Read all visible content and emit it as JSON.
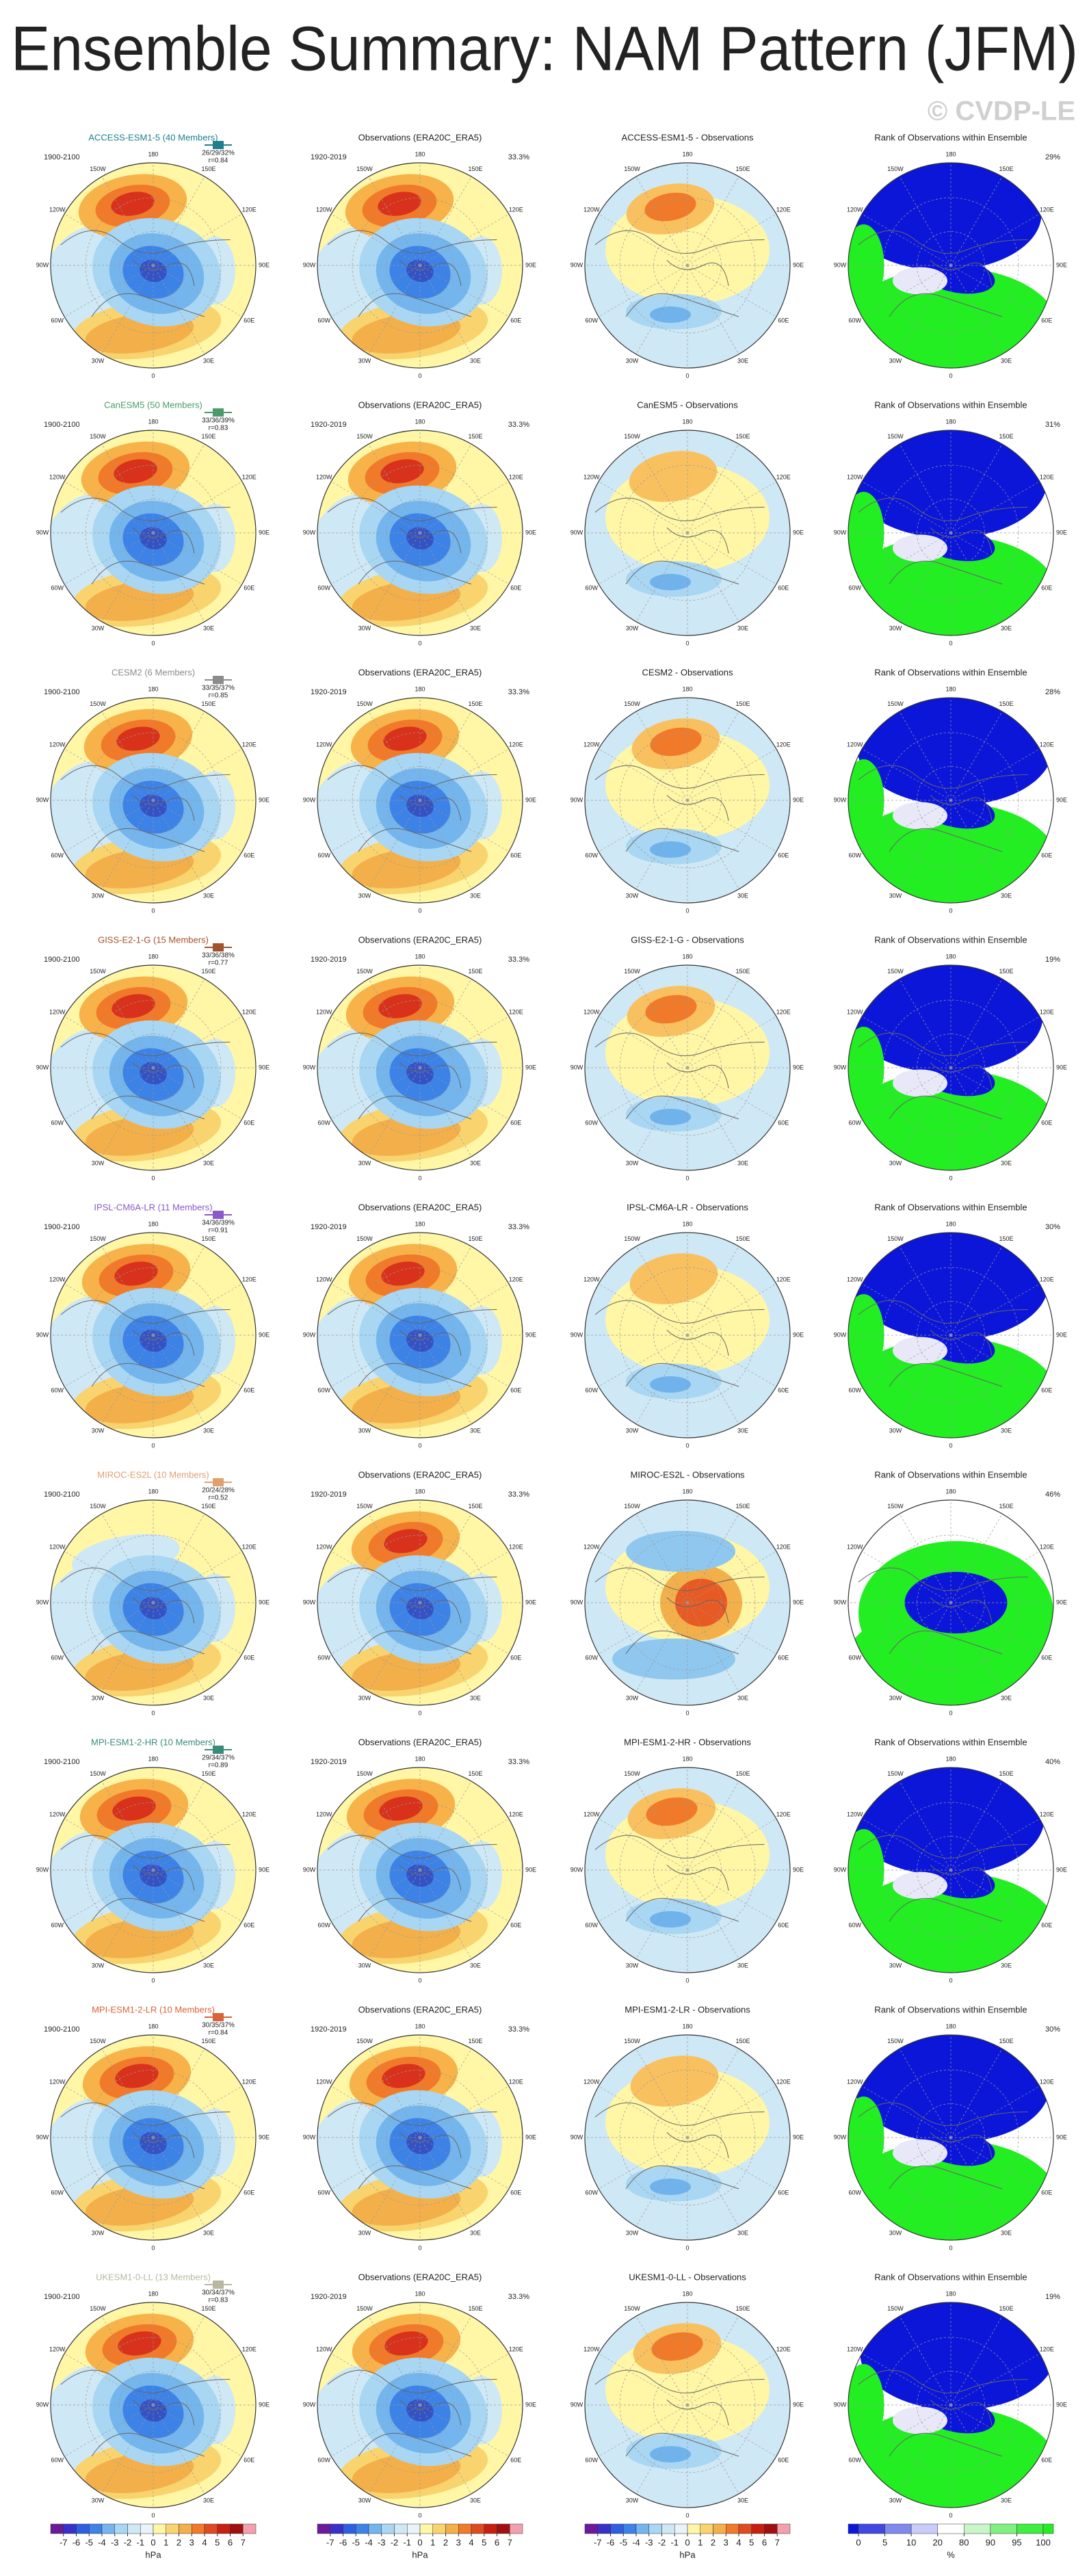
{
  "title": "Ensemble Summary: NAM Pattern (JFM)",
  "watermark": "© CVDP-LE",
  "rows": [
    {
      "model": "ACCESS-ESM1-5 (40 Members)",
      "model_color": "#1f7f8c",
      "model_years": "1900-2100",
      "model_stats": "26/29/32%",
      "model_r": "r=0.84",
      "obs_title": "Observations (ERA20C_ERA5)",
      "obs_years": "1920-2019",
      "obs_stat": "33.3%",
      "diff_title": "ACCESS-ESM1-5 - Observations",
      "rank_title": "Rank of Observations within Ensemble",
      "rank_stat": "29%"
    },
    {
      "model": "CanESM5 (50 Members)",
      "model_color": "#4a9a6a",
      "model_years": "1900-2100",
      "model_stats": "33/36/39%",
      "model_r": "r=0.83",
      "obs_title": "Observations (ERA20C_ERA5)",
      "obs_years": "1920-2019",
      "obs_stat": "33.3%",
      "diff_title": "CanESM5 - Observations",
      "rank_title": "Rank of Observations within Ensemble",
      "rank_stat": "31%"
    },
    {
      "model": "CESM2 (6 Members)",
      "model_color": "#8c8c8c",
      "model_years": "1900-2100",
      "model_stats": "33/35/37%",
      "model_r": "r=0.85",
      "obs_title": "Observations (ERA20C_ERA5)",
      "obs_years": "1920-2019",
      "obs_stat": "33.3%",
      "diff_title": "CESM2 - Observations",
      "rank_title": "Rank of Observations within Ensemble",
      "rank_stat": "28%"
    },
    {
      "model": "GISS-E2-1-G (15 Members)",
      "model_color": "#a0522d",
      "model_years": "1900-2100",
      "model_stats": "33/36/38%",
      "model_r": "r=0.77",
      "obs_title": "Observations (ERA20C_ERA5)",
      "obs_years": "1920-2019",
      "obs_stat": "33.3%",
      "diff_title": "GISS-E2-1-G - Observations",
      "rank_title": "Rank of Observations within Ensemble",
      "rank_stat": "19%"
    },
    {
      "model": "IPSL-CM6A-LR (11 Members)",
      "model_color": "#8a5ac8",
      "model_years": "1900-2100",
      "model_stats": "34/36/39%",
      "model_r": "r=0.91",
      "obs_title": "Observations (ERA20C_ERA5)",
      "obs_years": "1920-2019",
      "obs_stat": "33.3%",
      "diff_title": "IPSL-CM6A-LR - Observations",
      "rank_title": "Rank of Observations within Ensemble",
      "rank_stat": "30%"
    },
    {
      "model": "MIROC-ES2L (10 Members)",
      "model_color": "#e0a070",
      "model_years": "1900-2100",
      "model_stats": "20/24/28%",
      "model_r": "r=0.52",
      "obs_title": "Observations (ERA20C_ERA5)",
      "obs_years": "1920-2019",
      "obs_stat": "33.3%",
      "diff_title": "MIROC-ES2L - Observations",
      "rank_title": "Rank of Observations within Ensemble",
      "rank_stat": "46%"
    },
    {
      "model": "MPI-ESM1-2-HR (10 Members)",
      "model_color": "#3a8a7a",
      "model_years": "1900-2100",
      "model_stats": "29/34/37%",
      "model_r": "r=0.89",
      "obs_title": "Observations (ERA20C_ERA5)",
      "obs_years": "1920-2019",
      "obs_stat": "33.3%",
      "diff_title": "MPI-ESM1-2-HR - Observations",
      "rank_title": "Rank of Observations within Ensemble",
      "rank_stat": "40%"
    },
    {
      "model": "MPI-ESM1-2-LR (10 Members)",
      "model_color": "#d8643a",
      "model_years": "1900-2100",
      "model_stats": "30/35/37%",
      "model_r": "r=0.84",
      "obs_title": "Observations (ERA20C_ERA5)",
      "obs_years": "1920-2019",
      "obs_stat": "33.3%",
      "diff_title": "MPI-ESM1-2-LR - Observations",
      "rank_title": "Rank of Observations within Ensemble",
      "rank_stat": "30%"
    },
    {
      "model": "UKESM1-0-LL (13 Members)",
      "model_color": "#b8b8a0",
      "model_years": "1900-2100",
      "model_stats": "30/34/37%",
      "model_r": "r=0.83",
      "obs_title": "Observations (ERA20C_ERA5)",
      "obs_years": "1920-2019",
      "obs_stat": "33.3%",
      "diff_title": "UKESM1-0-LL - Observations",
      "rank_title": "Rank of Observations within Ensemble",
      "rank_stat": "19%"
    }
  ],
  "map_labels": [
    "180",
    "150W",
    "150E",
    "120W",
    "120E",
    "90W",
    "90E",
    "60W",
    "60E",
    "30W",
    "30E",
    "0"
  ],
  "colorbar_hpa": {
    "ticks": [
      -7,
      -6,
      -5,
      -4,
      -3,
      -2,
      -1,
      0,
      1,
      2,
      3,
      4,
      5,
      6,
      7
    ],
    "unit": "hPa"
  },
  "colorbar_rank": {
    "ticks": [
      0,
      5,
      10,
      20,
      80,
      90,
      95,
      100
    ],
    "unit": "%"
  }
}
